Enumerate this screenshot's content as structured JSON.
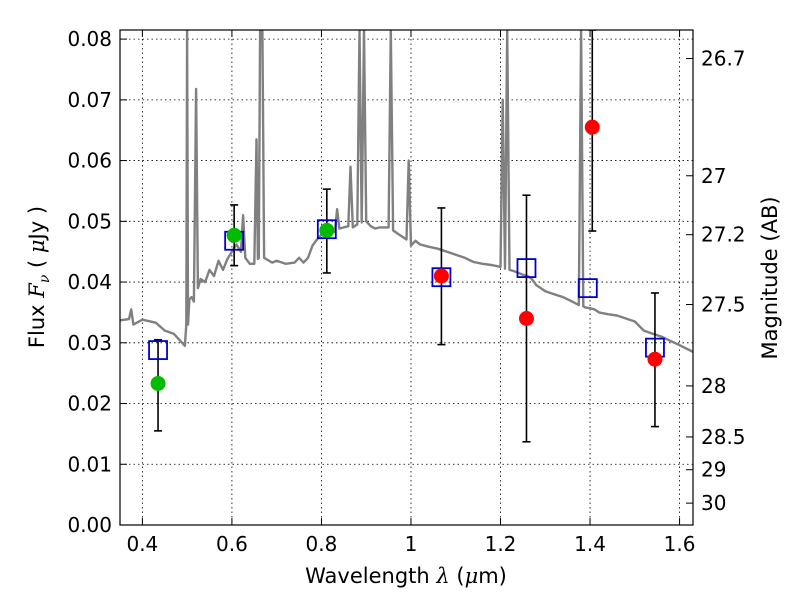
{
  "chart_data": {
    "type": "scatter",
    "xlabel": "Wavelength  λ (μm)",
    "ylabel": "Flux  F_ν  ( μJy )",
    "y2label": "Magnitude (AB)",
    "xlim": [
      0.35,
      1.63
    ],
    "ylim": [
      0.0,
      0.0815
    ],
    "x_ticks": [
      0.4,
      0.6,
      0.8,
      1.0,
      1.2,
      1.4,
      1.6
    ],
    "x_tick_labels": [
      "0.4",
      "0.6",
      "0.8",
      "1",
      "1.2",
      "1.4",
      "1.6"
    ],
    "y_ticks": [
      0.0,
      0.01,
      0.02,
      0.03,
      0.04,
      0.05,
      0.06,
      0.07,
      0.08
    ],
    "y_tick_labels": [
      "0.00",
      "0.01",
      "0.02",
      "0.03",
      "0.04",
      "0.05",
      "0.06",
      "0.07",
      "0.08"
    ],
    "y2_ticks": [
      {
        "label": "26.7",
        "flux": 0.0768
      },
      {
        "label": "27",
        "flux": 0.0575
      },
      {
        "label": "27.2",
        "flux": 0.0478
      },
      {
        "label": "27.5",
        "flux": 0.0363
      },
      {
        "label": "28",
        "flux": 0.0229
      },
      {
        "label": "28.5",
        "flux": 0.0145
      },
      {
        "label": "29",
        "flux": 0.0091
      },
      {
        "label": "30",
        "flux": 0.0036
      }
    ],
    "grid": true,
    "colors": {
      "model": "#808080",
      "green": "#00bb00",
      "red": "#ff0000",
      "square": "#0000cc",
      "error": "#000000"
    },
    "model_sed": [
      [
        0.35,
        0.0337
      ],
      [
        0.37,
        0.0339
      ],
      [
        0.375,
        0.0355
      ],
      [
        0.38,
        0.033
      ],
      [
        0.4,
        0.0338
      ],
      [
        0.43,
        0.0333
      ],
      [
        0.45,
        0.032
      ],
      [
        0.47,
        0.0315
      ],
      [
        0.495,
        0.0295
      ],
      [
        0.498,
        0.033
      ],
      [
        0.5,
        0.0815
      ],
      [
        0.502,
        0.033
      ],
      [
        0.505,
        0.0372
      ],
      [
        0.51,
        0.0375
      ],
      [
        0.515,
        0.0368
      ],
      [
        0.52,
        0.0718
      ],
      [
        0.524,
        0.039
      ],
      [
        0.53,
        0.0405
      ],
      [
        0.54,
        0.04
      ],
      [
        0.55,
        0.042
      ],
      [
        0.56,
        0.041
      ],
      [
        0.57,
        0.0435
      ],
      [
        0.58,
        0.042
      ],
      [
        0.59,
        0.0438
      ],
      [
        0.6,
        0.045
      ],
      [
        0.61,
        0.0462
      ],
      [
        0.62,
        0.045
      ],
      [
        0.625,
        0.051
      ],
      [
        0.63,
        0.044
      ],
      [
        0.64,
        0.043
      ],
      [
        0.65,
        0.043
      ],
      [
        0.655,
        0.0635
      ],
      [
        0.658,
        0.0438
      ],
      [
        0.66,
        0.044
      ],
      [
        0.663,
        0.0815
      ],
      [
        0.668,
        0.0815
      ],
      [
        0.672,
        0.044
      ],
      [
        0.69,
        0.0432
      ],
      [
        0.7,
        0.0435
      ],
      [
        0.72,
        0.043
      ],
      [
        0.74,
        0.0432
      ],
      [
        0.75,
        0.044
      ],
      [
        0.76,
        0.0432
      ],
      [
        0.77,
        0.044
      ],
      [
        0.78,
        0.046
      ],
      [
        0.79,
        0.047
      ],
      [
        0.8,
        0.0478
      ],
      [
        0.81,
        0.0485
      ],
      [
        0.82,
        0.049
      ],
      [
        0.83,
        0.0482
      ],
      [
        0.835,
        0.052
      ],
      [
        0.84,
        0.0488
      ],
      [
        0.85,
        0.049
      ],
      [
        0.86,
        0.0492
      ],
      [
        0.865,
        0.059
      ],
      [
        0.87,
        0.049
      ],
      [
        0.88,
        0.0495
      ],
      [
        0.885,
        0.0815
      ],
      [
        0.89,
        0.0498
      ],
      [
        0.895,
        0.0815
      ],
      [
        0.9,
        0.05
      ],
      [
        0.91,
        0.0492
      ],
      [
        0.92,
        0.0488
      ],
      [
        0.93,
        0.049
      ],
      [
        0.94,
        0.049
      ],
      [
        0.95,
        0.049
      ],
      [
        0.955,
        0.0815
      ],
      [
        0.96,
        0.0485
      ],
      [
        0.97,
        0.048
      ],
      [
        0.98,
        0.0475
      ],
      [
        0.99,
        0.047
      ],
      [
        0.995,
        0.06
      ],
      [
        1.0,
        0.046
      ],
      [
        1.01,
        0.0468
      ],
      [
        1.02,
        0.0462
      ],
      [
        1.04,
        0.0458
      ],
      [
        1.06,
        0.0455
      ],
      [
        1.08,
        0.045
      ],
      [
        1.1,
        0.0445
      ],
      [
        1.12,
        0.044
      ],
      [
        1.14,
        0.0433
      ],
      [
        1.16,
        0.043
      ],
      [
        1.18,
        0.0428
      ],
      [
        1.2,
        0.0425
      ],
      [
        1.205,
        0.07
      ],
      [
        1.21,
        0.0422
      ],
      [
        1.215,
        0.0815
      ],
      [
        1.22,
        0.042
      ],
      [
        1.23,
        0.0418
      ],
      [
        1.24,
        0.0415
      ],
      [
        1.25,
        0.0412
      ],
      [
        1.26,
        0.041
      ],
      [
        1.27,
        0.0405
      ],
      [
        1.28,
        0.0395
      ],
      [
        1.29,
        0.039
      ],
      [
        1.3,
        0.0385
      ],
      [
        1.32,
        0.038
      ],
      [
        1.34,
        0.0375
      ],
      [
        1.36,
        0.0368
      ],
      [
        1.375,
        0.0362
      ],
      [
        1.38,
        0.0815
      ],
      [
        1.385,
        0.036
      ],
      [
        1.39,
        0.0358
      ],
      [
        1.4,
        0.0357
      ],
      [
        1.41,
        0.0355
      ],
      [
        1.42,
        0.035
      ],
      [
        1.44,
        0.0347
      ],
      [
        1.46,
        0.0345
      ],
      [
        1.48,
        0.034
      ],
      [
        1.5,
        0.0335
      ],
      [
        1.52,
        0.032
      ],
      [
        1.54,
        0.0315
      ],
      [
        1.56,
        0.031
      ],
      [
        1.58,
        0.0303
      ],
      [
        1.6,
        0.0296
      ],
      [
        1.63,
        0.0285
      ]
    ],
    "squares": [
      {
        "x": 0.435,
        "y": 0.0288
      },
      {
        "x": 0.605,
        "y": 0.0468
      },
      {
        "x": 0.812,
        "y": 0.0487
      },
      {
        "x": 1.068,
        "y": 0.0408
      },
      {
        "x": 1.258,
        "y": 0.0423
      },
      {
        "x": 1.395,
        "y": 0.039
      },
      {
        "x": 1.545,
        "y": 0.0292
      }
    ],
    "green_points": [
      {
        "x": 0.435,
        "y": 0.0233,
        "ylo": 0.0155,
        "yhi": 0.0305
      },
      {
        "x": 0.605,
        "y": 0.0477,
        "ylo": 0.0427,
        "yhi": 0.0527
      },
      {
        "x": 0.812,
        "y": 0.0485,
        "ylo": 0.0415,
        "yhi": 0.0553
      }
    ],
    "red_points": [
      {
        "x": 1.068,
        "y": 0.041,
        "ylo": 0.0297,
        "yhi": 0.0522
      },
      {
        "x": 1.258,
        "y": 0.034,
        "ylo": 0.0137,
        "yhi": 0.0543
      },
      {
        "x": 1.405,
        "y": 0.0655,
        "ylo": 0.0484,
        "yhi": 0.0815
      },
      {
        "x": 1.545,
        "y": 0.0273,
        "ylo": 0.0162,
        "yhi": 0.0382
      }
    ]
  }
}
